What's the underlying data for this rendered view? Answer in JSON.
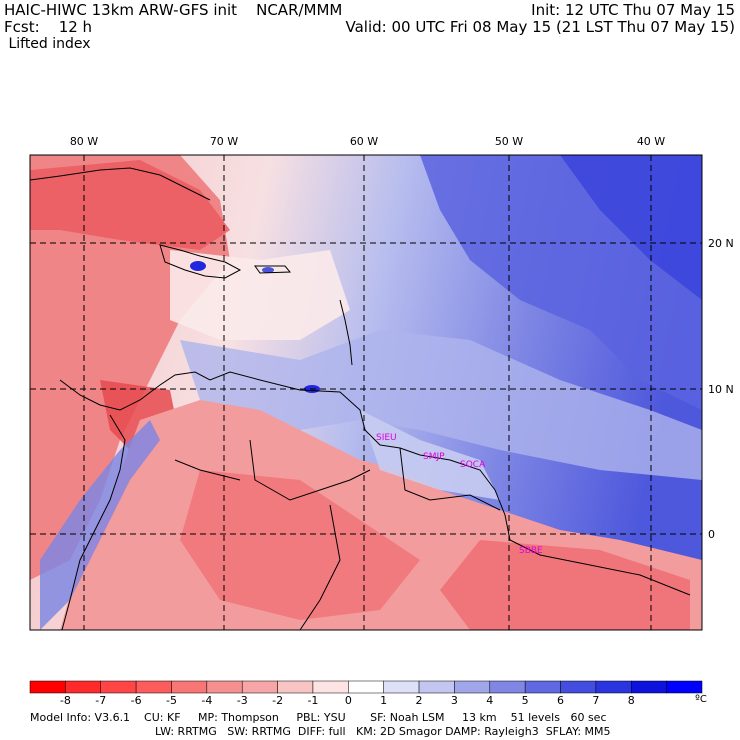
{
  "header": {
    "title_line1": "HAIC-HIWC 13km ARW-GFS init    NCAR/MMM",
    "fcst_line": "Fcst:    12 h",
    "field_name": " Lifted index",
    "init_line": "Init: 12 UTC Thu 07 May 15",
    "valid_line": "Valid: 00 UTC Fri 08 May 15 (21 LST Thu 07 May 15)"
  },
  "map": {
    "lon_labels": [
      "80 W",
      "70 W",
      "60 W",
      "50 W",
      "40 W"
    ],
    "lat_labels": [
      "20 N",
      "10 N",
      "0"
    ],
    "stations": [
      "SIEU",
      "SMJP",
      "SOCA",
      "SBBE"
    ],
    "colors": {
      "strong_negative": "#e8333a",
      "negative": "#f37b7e",
      "weak_negative": "#f6b7b7",
      "near_zero": "#fde5e6",
      "weak_positive": "#c8cef2",
      "positive": "#8f95e5",
      "strong_positive": "#4b55dc",
      "very_positive": "#1a1fe0"
    }
  },
  "colorbar": {
    "labels": [
      "-8",
      "-7",
      "-6",
      "-5",
      "-4",
      "-3",
      "-2",
      "-1",
      "0",
      "1",
      "2",
      "3",
      "4",
      "5",
      "6",
      "7",
      "8"
    ],
    "unit": "ºC",
    "colors": [
      "#ff0000",
      "#ff2a2a",
      "#ff4545",
      "#fd5c5c",
      "#f87676",
      "#f68f8f",
      "#f6a6a6",
      "#f9c4c4",
      "#fde3e3",
      "#ffffff",
      "#dde0f6",
      "#c3c6f0",
      "#a1a6ea",
      "#7f86e3",
      "#6069e1",
      "#434ee0",
      "#2a34df",
      "#0d13dc",
      "#0000ff"
    ]
  },
  "footer": {
    "line1": "Model Info: V3.6.1    CU: KF     MP: Thompson     PBL: YSU       SF: Noah LSM     13 km    51 levels   60 sec",
    "line2": "LW: RRTMG   SW: RRTMG  DIFF: full   KM: 2D Smagor DAMP: Rayleigh3  SFLAY: MM5"
  }
}
